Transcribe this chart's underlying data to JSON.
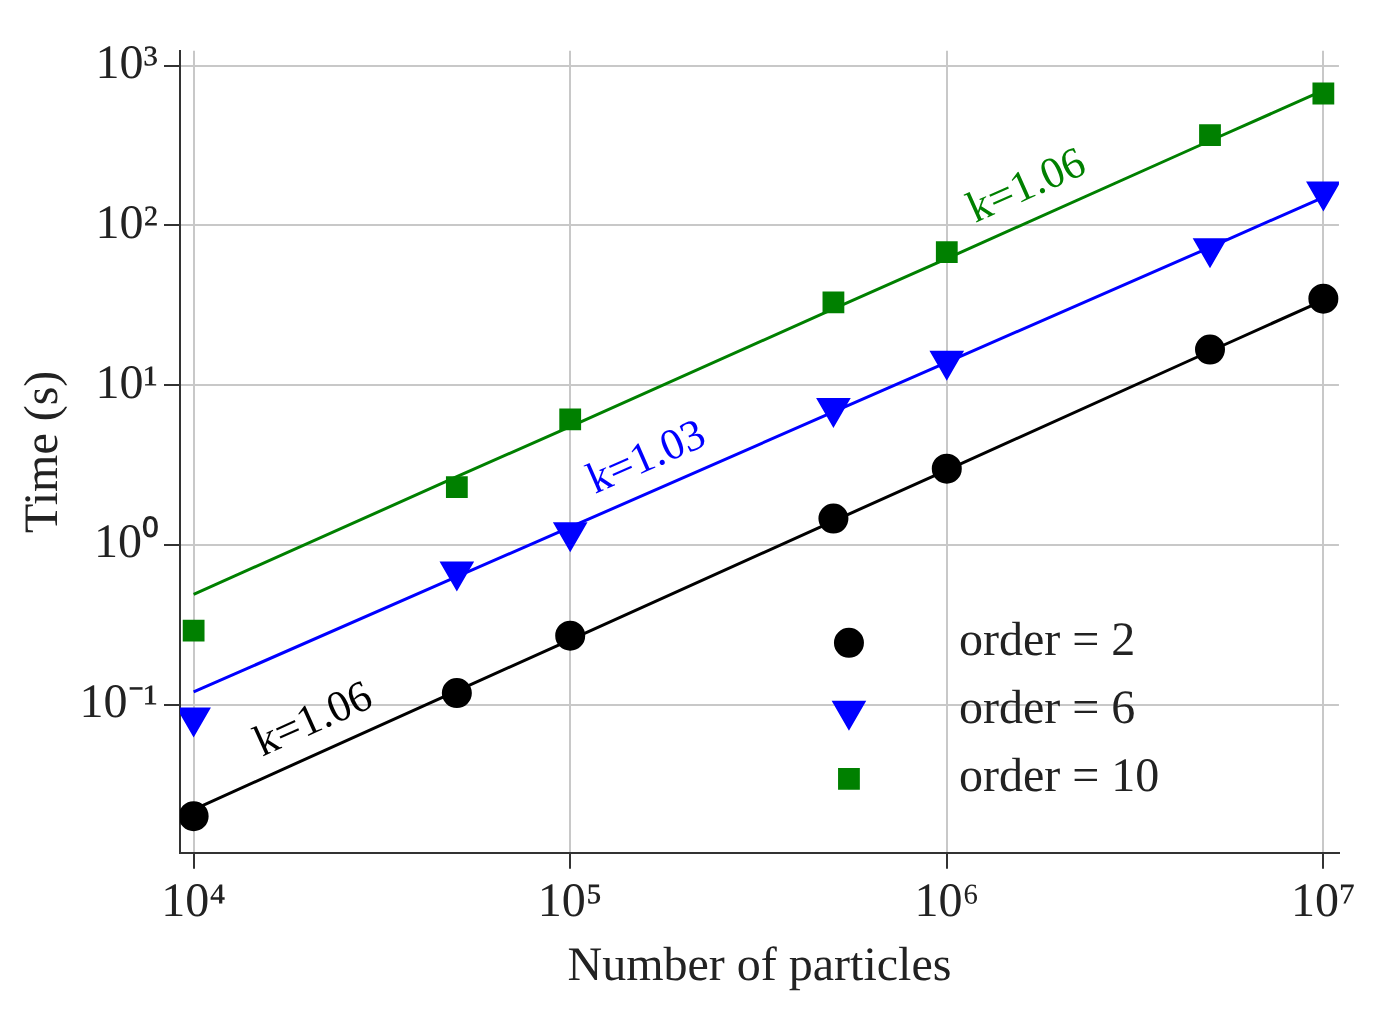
{
  "chart_data": {
    "type": "scatter",
    "xlabel": "Number of particles",
    "ylabel": "Time (s)",
    "log": "xy",
    "grid": true,
    "legend": "bottom right",
    "x": [
      10000,
      50000,
      100000,
      500000,
      1000000,
      5000000,
      10000000
    ],
    "xlim": [
      9200,
      11000000
    ],
    "ylim": [
      0.0118,
      1240
    ],
    "xticks": [
      {
        "value": 10000,
        "label": "10⁴"
      },
      {
        "value": 100000,
        "label": "10⁵"
      },
      {
        "value": 1000000,
        "label": "10⁶"
      },
      {
        "value": 10000000,
        "label": "10⁷"
      }
    ],
    "yticks": [
      {
        "value": 0.1,
        "label": "10⁻¹"
      },
      {
        "value": 1,
        "label": "10⁰"
      },
      {
        "value": 10,
        "label": "10¹"
      },
      {
        "value": 100,
        "label": "10²"
      },
      {
        "value": 1000,
        "label": "10³"
      }
    ],
    "series": [
      {
        "type": "line",
        "color": "#000000",
        "values": [
          0.022,
          0.122,
          0.254,
          1.41,
          2.94,
          16.3,
          34
        ],
        "marker": "none"
      },
      {
        "type": "line",
        "color": "#0000ff",
        "values": [
          0.12,
          0.632,
          1.29,
          6.8,
          13.9,
          73,
          150
        ],
        "marker": "none"
      },
      {
        "type": "line",
        "color": "#008000",
        "values": [
          0.49,
          2.67,
          5.5,
          30,
          62,
          339,
          700
        ],
        "marker": "none"
      },
      {
        "name": "order = 2",
        "color": "#000000",
        "marker": "circle",
        "values": [
          0.02,
          0.118,
          0.27,
          1.46,
          3.0,
          16.7,
          34.8
        ]
      },
      {
        "name": "order = 6",
        "color": "#0000ff",
        "marker": "triangle",
        "values": [
          0.083,
          0.68,
          1.2,
          7.2,
          14.2,
          72,
          163
        ]
      },
      {
        "name": "order = 10",
        "color": "#008000",
        "marker": "square",
        "values": [
          0.29,
          2.3,
          6.1,
          33,
          68,
          368,
          670
        ]
      }
    ],
    "annotations": [
      {
        "text": "k=1.06",
        "x": 22600,
        "y": 0.052
      },
      {
        "text": "k=1.03",
        "x": 173000,
        "y": 2.27
      },
      {
        "text": "k=1.06",
        "x": 1770000,
        "y": 114
      }
    ]
  }
}
